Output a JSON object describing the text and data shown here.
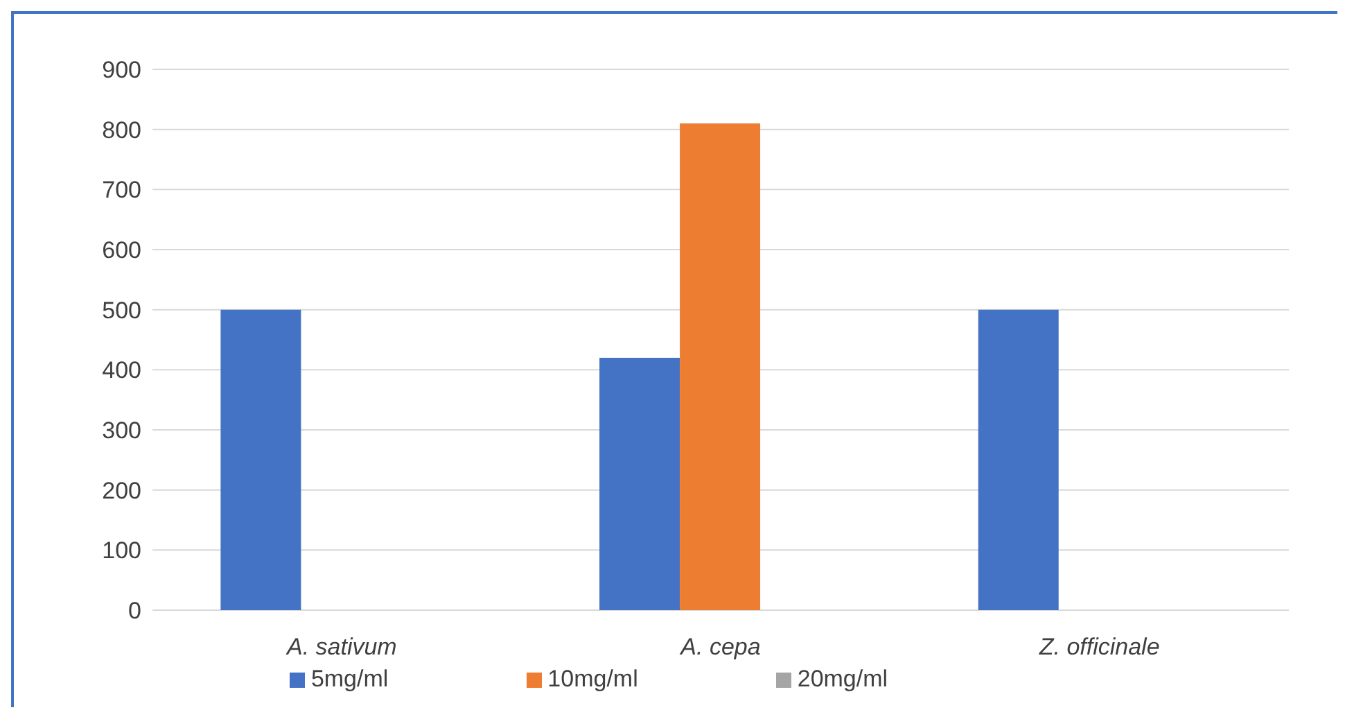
{
  "chart_data": {
    "type": "bar",
    "categories": [
      "A. sativum",
      "A. cepa",
      "Z. officinale"
    ],
    "series": [
      {
        "name": "5mg/ml",
        "color": "#4472c4",
        "values": [
          500,
          420,
          500
        ]
      },
      {
        "name": "10mg/ml",
        "color": "#ed7d31",
        "values": [
          null,
          810,
          null
        ]
      },
      {
        "name": "20mg/ml",
        "color": "#a5a5a5",
        "values": [
          null,
          null,
          null
        ]
      }
    ],
    "ylim": [
      0,
      900
    ],
    "yticks": [
      0,
      100,
      200,
      300,
      400,
      500,
      600,
      700,
      800,
      900
    ],
    "grid": "y",
    "legend": "bottom"
  }
}
